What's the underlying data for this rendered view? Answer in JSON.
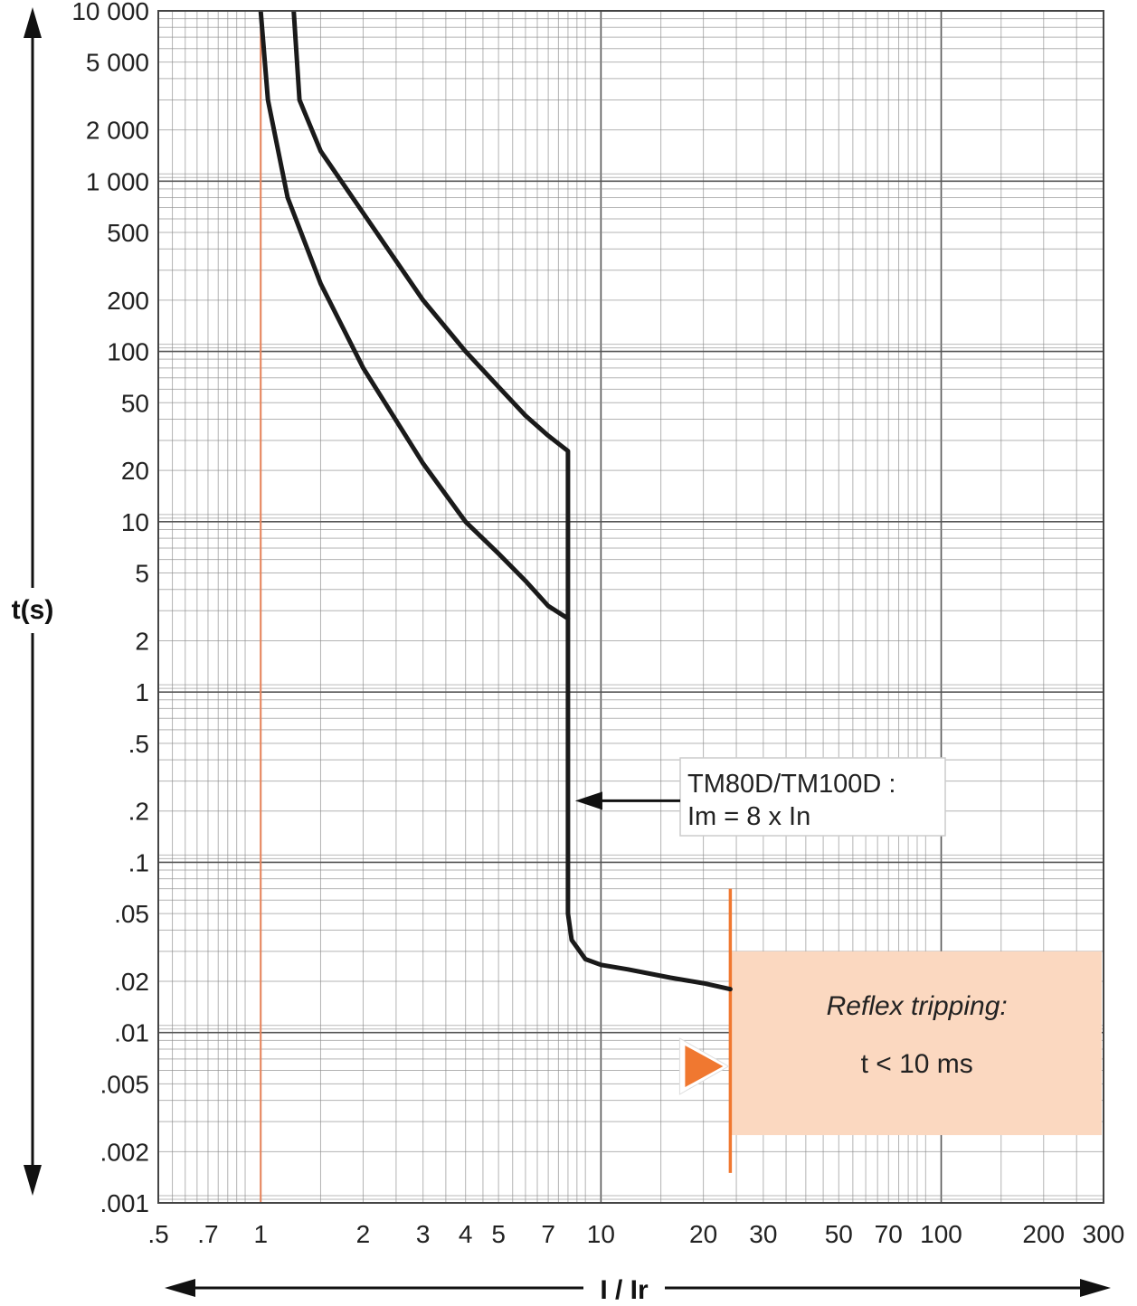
{
  "chart_data": {
    "type": "line",
    "xscale": "log",
    "yscale": "log",
    "xlim": [
      0.5,
      300
    ],
    "ylim": [
      0.001,
      10000
    ],
    "grid": true,
    "xlabel": "I / Ir",
    "ylabel": "t(s)",
    "x_ticks": [
      {
        "v": 0.5,
        "label": ".5"
      },
      {
        "v": 0.7,
        "label": ".7"
      },
      {
        "v": 1,
        "label": "1"
      },
      {
        "v": 2,
        "label": "2"
      },
      {
        "v": 3,
        "label": "3"
      },
      {
        "v": 4,
        "label": "4"
      },
      {
        "v": 5,
        "label": "5"
      },
      {
        "v": 7,
        "label": "7"
      },
      {
        "v": 10,
        "label": "10"
      },
      {
        "v": 20,
        "label": "20"
      },
      {
        "v": 30,
        "label": "30"
      },
      {
        "v": 50,
        "label": "50"
      },
      {
        "v": 70,
        "label": "70"
      },
      {
        "v": 100,
        "label": "100"
      },
      {
        "v": 200,
        "label": "200"
      },
      {
        "v": 300,
        "label": "300"
      }
    ],
    "y_ticks": [
      {
        "v": 10000,
        "label": "10 000"
      },
      {
        "v": 5000,
        "label": "5 000"
      },
      {
        "v": 2000,
        "label": "2 000"
      },
      {
        "v": 1000,
        "label": "1 000"
      },
      {
        "v": 500,
        "label": "500"
      },
      {
        "v": 200,
        "label": "200"
      },
      {
        "v": 100,
        "label": "100"
      },
      {
        "v": 50,
        "label": "50"
      },
      {
        "v": 20,
        "label": "20"
      },
      {
        "v": 10,
        "label": "10"
      },
      {
        "v": 5,
        "label": "5"
      },
      {
        "v": 2,
        "label": "2"
      },
      {
        "v": 1,
        "label": "1"
      },
      {
        "v": 0.5,
        "label": ".5"
      },
      {
        "v": 0.2,
        "label": ".2"
      },
      {
        "v": 0.1,
        "label": ".1"
      },
      {
        "v": 0.05,
        "label": ".05"
      },
      {
        "v": 0.02,
        "label": ".02"
      },
      {
        "v": 0.01,
        "label": ".01"
      },
      {
        "v": 0.005,
        "label": ".005"
      },
      {
        "v": 0.002,
        "label": ".002"
      },
      {
        "v": 0.001,
        "label": ".001"
      }
    ],
    "series": [
      {
        "points": [
          [
            1.0,
            10000
          ],
          [
            1.05,
            3000
          ],
          [
            1.2,
            800
          ],
          [
            1.5,
            250
          ],
          [
            2,
            80
          ],
          [
            3,
            22
          ],
          [
            4,
            10
          ],
          [
            5,
            6.5
          ],
          [
            6,
            4.5
          ],
          [
            7,
            3.2
          ],
          [
            8,
            2.7
          ],
          [
            8,
            1
          ],
          [
            8,
            0.3
          ],
          [
            8,
            0.1
          ],
          [
            8,
            0.05
          ],
          [
            8.2,
            0.035
          ],
          [
            9,
            0.027
          ],
          [
            10,
            0.025
          ],
          [
            12,
            0.0235
          ],
          [
            16,
            0.021
          ],
          [
            20,
            0.0195
          ],
          [
            24,
            0.018
          ]
        ]
      },
      {
        "points": [
          [
            1.25,
            10000
          ],
          [
            1.3,
            3000
          ],
          [
            1.5,
            1500
          ],
          [
            2,
            650
          ],
          [
            3,
            200
          ],
          [
            4,
            100
          ],
          [
            5,
            62
          ],
          [
            6,
            42
          ],
          [
            7,
            32
          ],
          [
            8,
            26
          ],
          [
            8,
            10
          ],
          [
            8,
            2.7
          ]
        ]
      }
    ],
    "reference_lines": [
      {
        "axis": "x",
        "value": 1,
        "color": "#e8835a"
      },
      {
        "axis": "x",
        "value": 24,
        "color": "#f07830"
      }
    ],
    "annotations": [
      {
        "text_lines": [
          "TM80D/TM100D :",
          "Im = 8 x In"
        ],
        "points_to": [
          8,
          0.23
        ]
      },
      {
        "text_lines": [
          "Reflex tripping:",
          "t < 10 ms"
        ],
        "region": {
          "x": [
            24,
            300
          ],
          "y": [
            0.0025,
            0.03
          ]
        },
        "fill": "#fbd8c0"
      }
    ],
    "colors": {
      "curve": "#1a1a1a",
      "ref_line": "#e8835a",
      "accent": "#f07830",
      "shade": "#fbd8c0",
      "grid": "#8c8c8c"
    }
  }
}
